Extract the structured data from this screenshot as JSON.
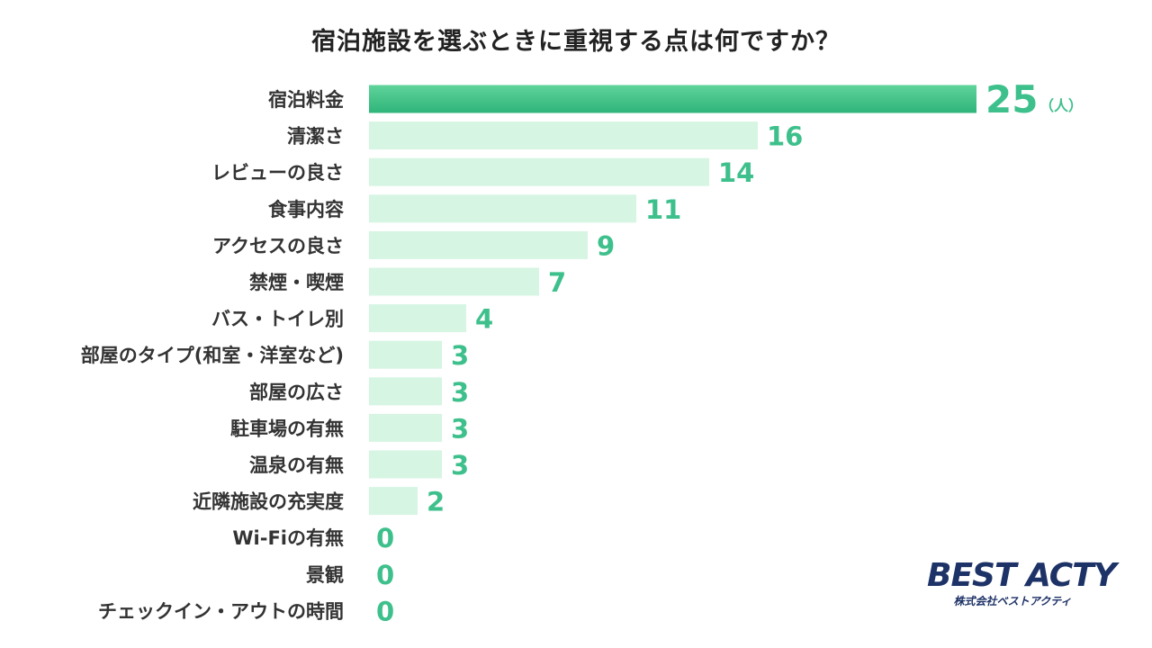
{
  "chart_data": {
    "type": "bar",
    "orientation": "horizontal",
    "title": "宿泊施設を選ぶときに重視する点は何ですか？",
    "unit": "（人）",
    "categories": [
      "宿泊料金",
      "清潔さ",
      "レビューの良さ",
      "食事内容",
      "アクセスの良さ",
      "禁煙・喫煙",
      "バス・トイレ別",
      "部屋のタイプ(和室・洋室など)",
      "部屋の広さ",
      "駐車場の有無",
      "温泉の有無",
      "近隣施設の充実度",
      "Wi-Fiの有無",
      "景観",
      "チェックイン・アウトの時間"
    ],
    "values": [
      25,
      16,
      14,
      11,
      9,
      7,
      4,
      3,
      3,
      3,
      3,
      2,
      0,
      0,
      0
    ],
    "xlim": [
      0,
      25
    ],
    "grid": false,
    "legend": "none",
    "colors": {
      "highlight_bar_top": "#5fd39a",
      "highlight_bar_bottom": "#2fb47a",
      "bar": "#d6f5e3",
      "value_label": "#3ec08c",
      "category_label": "#333333",
      "title": "#222222"
    }
  },
  "logo": {
    "name": "BEST ACTY",
    "sub": "株式会社ベストアクティ",
    "color": "#1d3266"
  }
}
